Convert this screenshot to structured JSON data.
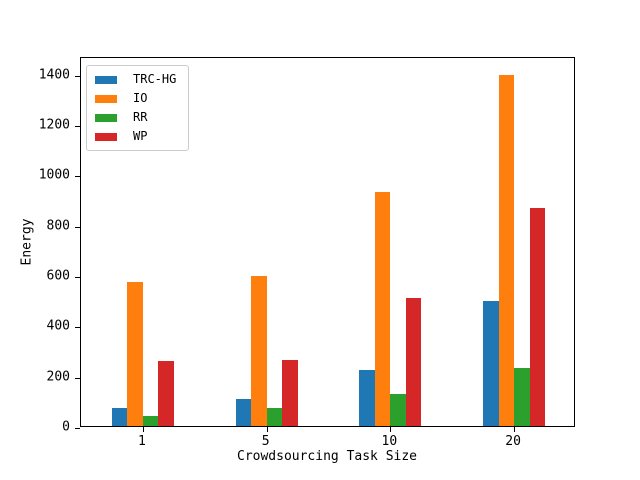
{
  "chart_data": {
    "type": "bar",
    "title": "",
    "xlabel": "Crowdsourcing Task Size",
    "ylabel": "Energy",
    "categories": [
      "1",
      "5",
      "10",
      "20"
    ],
    "series": [
      {
        "name": "TRC-HG",
        "color": "#1f77b4",
        "values": [
          70,
          108,
          222,
          495
        ]
      },
      {
        "name": "IO",
        "color": "#ff7f0e",
        "values": [
          572,
          595,
          930,
          1395
        ]
      },
      {
        "name": "RR",
        "color": "#2ca02c",
        "values": [
          40,
          70,
          127,
          232
        ]
      },
      {
        "name": "WP",
        "color": "#d62728",
        "values": [
          258,
          262,
          510,
          866
        ]
      }
    ],
    "yticks": [
      0,
      200,
      400,
      600,
      800,
      1000,
      1200,
      1400
    ],
    "ylim": [
      0,
      1470
    ],
    "xlim_category_units": [
      -0.5,
      3.5
    ],
    "bar_width_category_units": 0.125,
    "legend_position": "upper-left",
    "grid": false,
    "axis_color": "#000000",
    "background_color": "#ffffff"
  }
}
